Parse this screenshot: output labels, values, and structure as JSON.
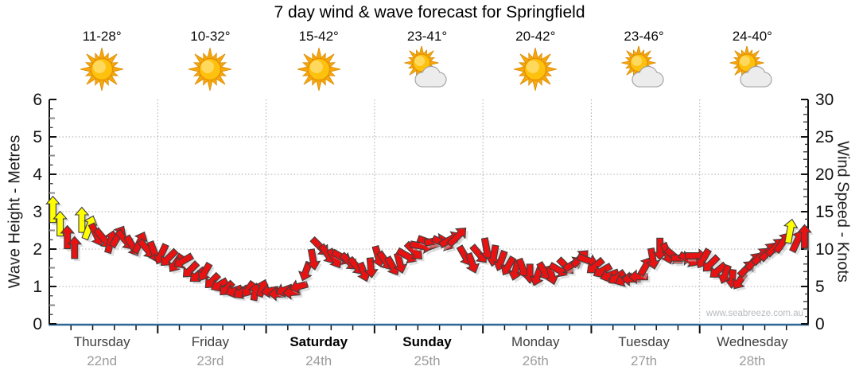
{
  "title": "7 day wind & wave forecast for Springfield",
  "watermark": "www.seabreeze.com.au",
  "axes": {
    "left": {
      "label": "Wave Height - Metres",
      "ticks": [
        0,
        1,
        2,
        3,
        4,
        5,
        6
      ]
    },
    "right": {
      "label": "Wind Speed - Knots",
      "ticks": [
        0,
        5,
        10,
        15,
        20,
        25,
        30
      ]
    }
  },
  "days": [
    {
      "name": "Thursday",
      "date": "22nd",
      "temp": "11-28°",
      "icon": "sunny",
      "bold": false
    },
    {
      "name": "Friday",
      "date": "23rd",
      "temp": "10-32°",
      "icon": "sunny",
      "bold": false
    },
    {
      "name": "Saturday",
      "date": "24th",
      "temp": "15-42°",
      "icon": "sunny",
      "bold": true
    },
    {
      "name": "Sunday",
      "date": "25th",
      "temp": "23-41°",
      "icon": "partly-cloudy",
      "bold": true
    },
    {
      "name": "Monday",
      "date": "26th",
      "temp": "20-42°",
      "icon": "sunny",
      "bold": false
    },
    {
      "name": "Tuesday",
      "date": "27th",
      "temp": "23-46°",
      "icon": "partly-cloudy",
      "bold": false
    },
    {
      "name": "Wednesday",
      "date": "28th",
      "temp": "24-40°",
      "icon": "partly-cloudy",
      "bold": false
    }
  ],
  "colors": {
    "arrow_red": "#e81212",
    "arrow_yellow": "#ffff00",
    "arrow_outline": "#3f3f3f",
    "grid": "#ababab",
    "axis": "#111111",
    "bottom_axis_blue": "#2e6695"
  },
  "chart_data": {
    "type": "scatter",
    "title": "7 day wind & wave forecast for Springfield",
    "x_categories": [
      "Thursday 22nd",
      "Friday 23rd",
      "Saturday 24th",
      "Sunday 25th",
      "Monday 26th",
      "Tuesday 27th",
      "Wednesday 28th"
    ],
    "left_axis": {
      "label": "Wave Height - Metres",
      "range": [
        0,
        6
      ],
      "unit": "metres"
    },
    "right_axis": {
      "label": "Wind Speed - Knots",
      "range": [
        0,
        30
      ],
      "unit": "knots"
    },
    "grid": "dotted",
    "legend": "none",
    "point_format": [
      "wind_speed_knots",
      "direction_degrees_arrow_points_toward",
      "color (r=red, y=yellow)"
    ],
    "wind_arrows": [
      {
        "day": "Thursday",
        "points": [
          [
            15.3,
            0,
            "y"
          ],
          [
            13.4,
            0,
            "y"
          ],
          [
            11.6,
            0,
            "r"
          ],
          [
            10.2,
            0,
            "r"
          ],
          [
            13.9,
            0,
            "y"
          ],
          [
            12.9,
            20,
            "y"
          ],
          [
            11.9,
            155,
            "r"
          ],
          [
            11.4,
            140,
            "r"
          ],
          [
            11.0,
            15,
            "r"
          ],
          [
            11.7,
            30,
            "r"
          ],
          [
            11.2,
            140,
            "r"
          ],
          [
            10.4,
            150,
            "r"
          ],
          [
            10.9,
            25,
            "r"
          ],
          [
            10.0,
            140,
            "r"
          ],
          [
            9.6,
            160,
            "r"
          ]
        ]
      },
      {
        "day": "Friday",
        "points": [
          [
            9.3,
            205,
            "r"
          ],
          [
            8.8,
            225,
            "r"
          ],
          [
            8.1,
            215,
            "r"
          ],
          [
            8.4,
            240,
            "r"
          ],
          [
            7.2,
            225,
            "r"
          ],
          [
            6.5,
            230,
            "r"
          ],
          [
            6.9,
            210,
            "r"
          ],
          [
            5.7,
            225,
            "r"
          ],
          [
            5.2,
            240,
            "r"
          ],
          [
            4.7,
            225,
            "r"
          ],
          [
            4.4,
            250,
            "r"
          ],
          [
            4.2,
            235,
            "r"
          ],
          [
            4.6,
            215,
            "r"
          ],
          [
            4.3,
            10,
            "r"
          ],
          [
            4.8,
            20,
            "r"
          ]
        ]
      },
      {
        "day": "Saturday",
        "points": [
          [
            4.4,
            260,
            "r"
          ],
          [
            4.0,
            270,
            "r"
          ],
          [
            4.5,
            250,
            "r"
          ],
          [
            4.2,
            265,
            "r"
          ],
          [
            5.0,
            255,
            "r"
          ],
          [
            7.0,
            200,
            "r"
          ],
          [
            8.6,
            170,
            "r"
          ],
          [
            10.3,
            135,
            "r"
          ],
          [
            9.3,
            145,
            "r"
          ],
          [
            8.7,
            150,
            "r"
          ],
          [
            8.9,
            120,
            "r"
          ],
          [
            8.3,
            135,
            "r"
          ],
          [
            7.7,
            140,
            "r"
          ],
          [
            6.9,
            160,
            "r"
          ],
          [
            7.5,
            175,
            "r"
          ]
        ]
      },
      {
        "day": "Sunday",
        "points": [
          [
            9.0,
            165,
            "r"
          ],
          [
            8.4,
            145,
            "r"
          ],
          [
            7.7,
            150,
            "r"
          ],
          [
            8.1,
            165,
            "r"
          ],
          [
            9.1,
            120,
            "r"
          ],
          [
            9.7,
            135,
            "r"
          ],
          [
            10.4,
            100,
            "r"
          ],
          [
            10.9,
            110,
            "r"
          ],
          [
            11.1,
            80,
            "r"
          ],
          [
            10.8,
            115,
            "r"
          ],
          [
            11.3,
            60,
            "r"
          ],
          [
            11.7,
            45,
            "r"
          ],
          [
            9.1,
            150,
            "r"
          ],
          [
            8.1,
            160,
            "r"
          ],
          [
            9.3,
            140,
            "r"
          ]
        ]
      },
      {
        "day": "Monday",
        "points": [
          [
            10.0,
            170,
            "r"
          ],
          [
            9.1,
            190,
            "r"
          ],
          [
            8.4,
            200,
            "r"
          ],
          [
            7.7,
            210,
            "r"
          ],
          [
            7.1,
            195,
            "r"
          ],
          [
            7.4,
            160,
            "r"
          ],
          [
            6.7,
            180,
            "r"
          ],
          [
            6.3,
            200,
            "r"
          ],
          [
            7.0,
            150,
            "r"
          ],
          [
            6.5,
            165,
            "r"
          ],
          [
            7.2,
            120,
            "r"
          ],
          [
            7.7,
            135,
            "r"
          ],
          [
            8.0,
            60,
            "r"
          ],
          [
            8.8,
            45,
            "r"
          ],
          [
            8.5,
            110,
            "r"
          ]
        ]
      },
      {
        "day": "Tuesday",
        "points": [
          [
            7.7,
            230,
            "r"
          ],
          [
            7.1,
            240,
            "r"
          ],
          [
            6.5,
            250,
            "r"
          ],
          [
            6.2,
            235,
            "r"
          ],
          [
            5.9,
            245,
            "r"
          ],
          [
            6.0,
            270,
            "r"
          ],
          [
            6.3,
            270,
            "r"
          ],
          [
            7.7,
            30,
            "r"
          ],
          [
            8.7,
            170,
            "r"
          ],
          [
            10.0,
            180,
            "r"
          ],
          [
            9.4,
            160,
            "r"
          ],
          [
            9.0,
            130,
            "r"
          ],
          [
            8.8,
            90,
            "r"
          ],
          [
            8.6,
            120,
            "r"
          ],
          [
            9.1,
            90,
            "r"
          ]
        ]
      },
      {
        "day": "Wednesday",
        "points": [
          [
            8.7,
            210,
            "r"
          ],
          [
            8.0,
            225,
            "r"
          ],
          [
            7.1,
            230,
            "r"
          ],
          [
            6.6,
            200,
            "r"
          ],
          [
            6.0,
            185,
            "r"
          ],
          [
            5.7,
            215,
            "r"
          ],
          [
            7.4,
            45,
            "r"
          ],
          [
            8.4,
            40,
            "r"
          ],
          [
            9.1,
            45,
            "r"
          ],
          [
            9.7,
            40,
            "r"
          ],
          [
            10.3,
            45,
            "r"
          ],
          [
            10.9,
            35,
            "r"
          ],
          [
            12.4,
            10,
            "y"
          ],
          [
            11.1,
            25,
            "r"
          ],
          [
            11.7,
            0,
            "r"
          ]
        ]
      }
    ]
  }
}
